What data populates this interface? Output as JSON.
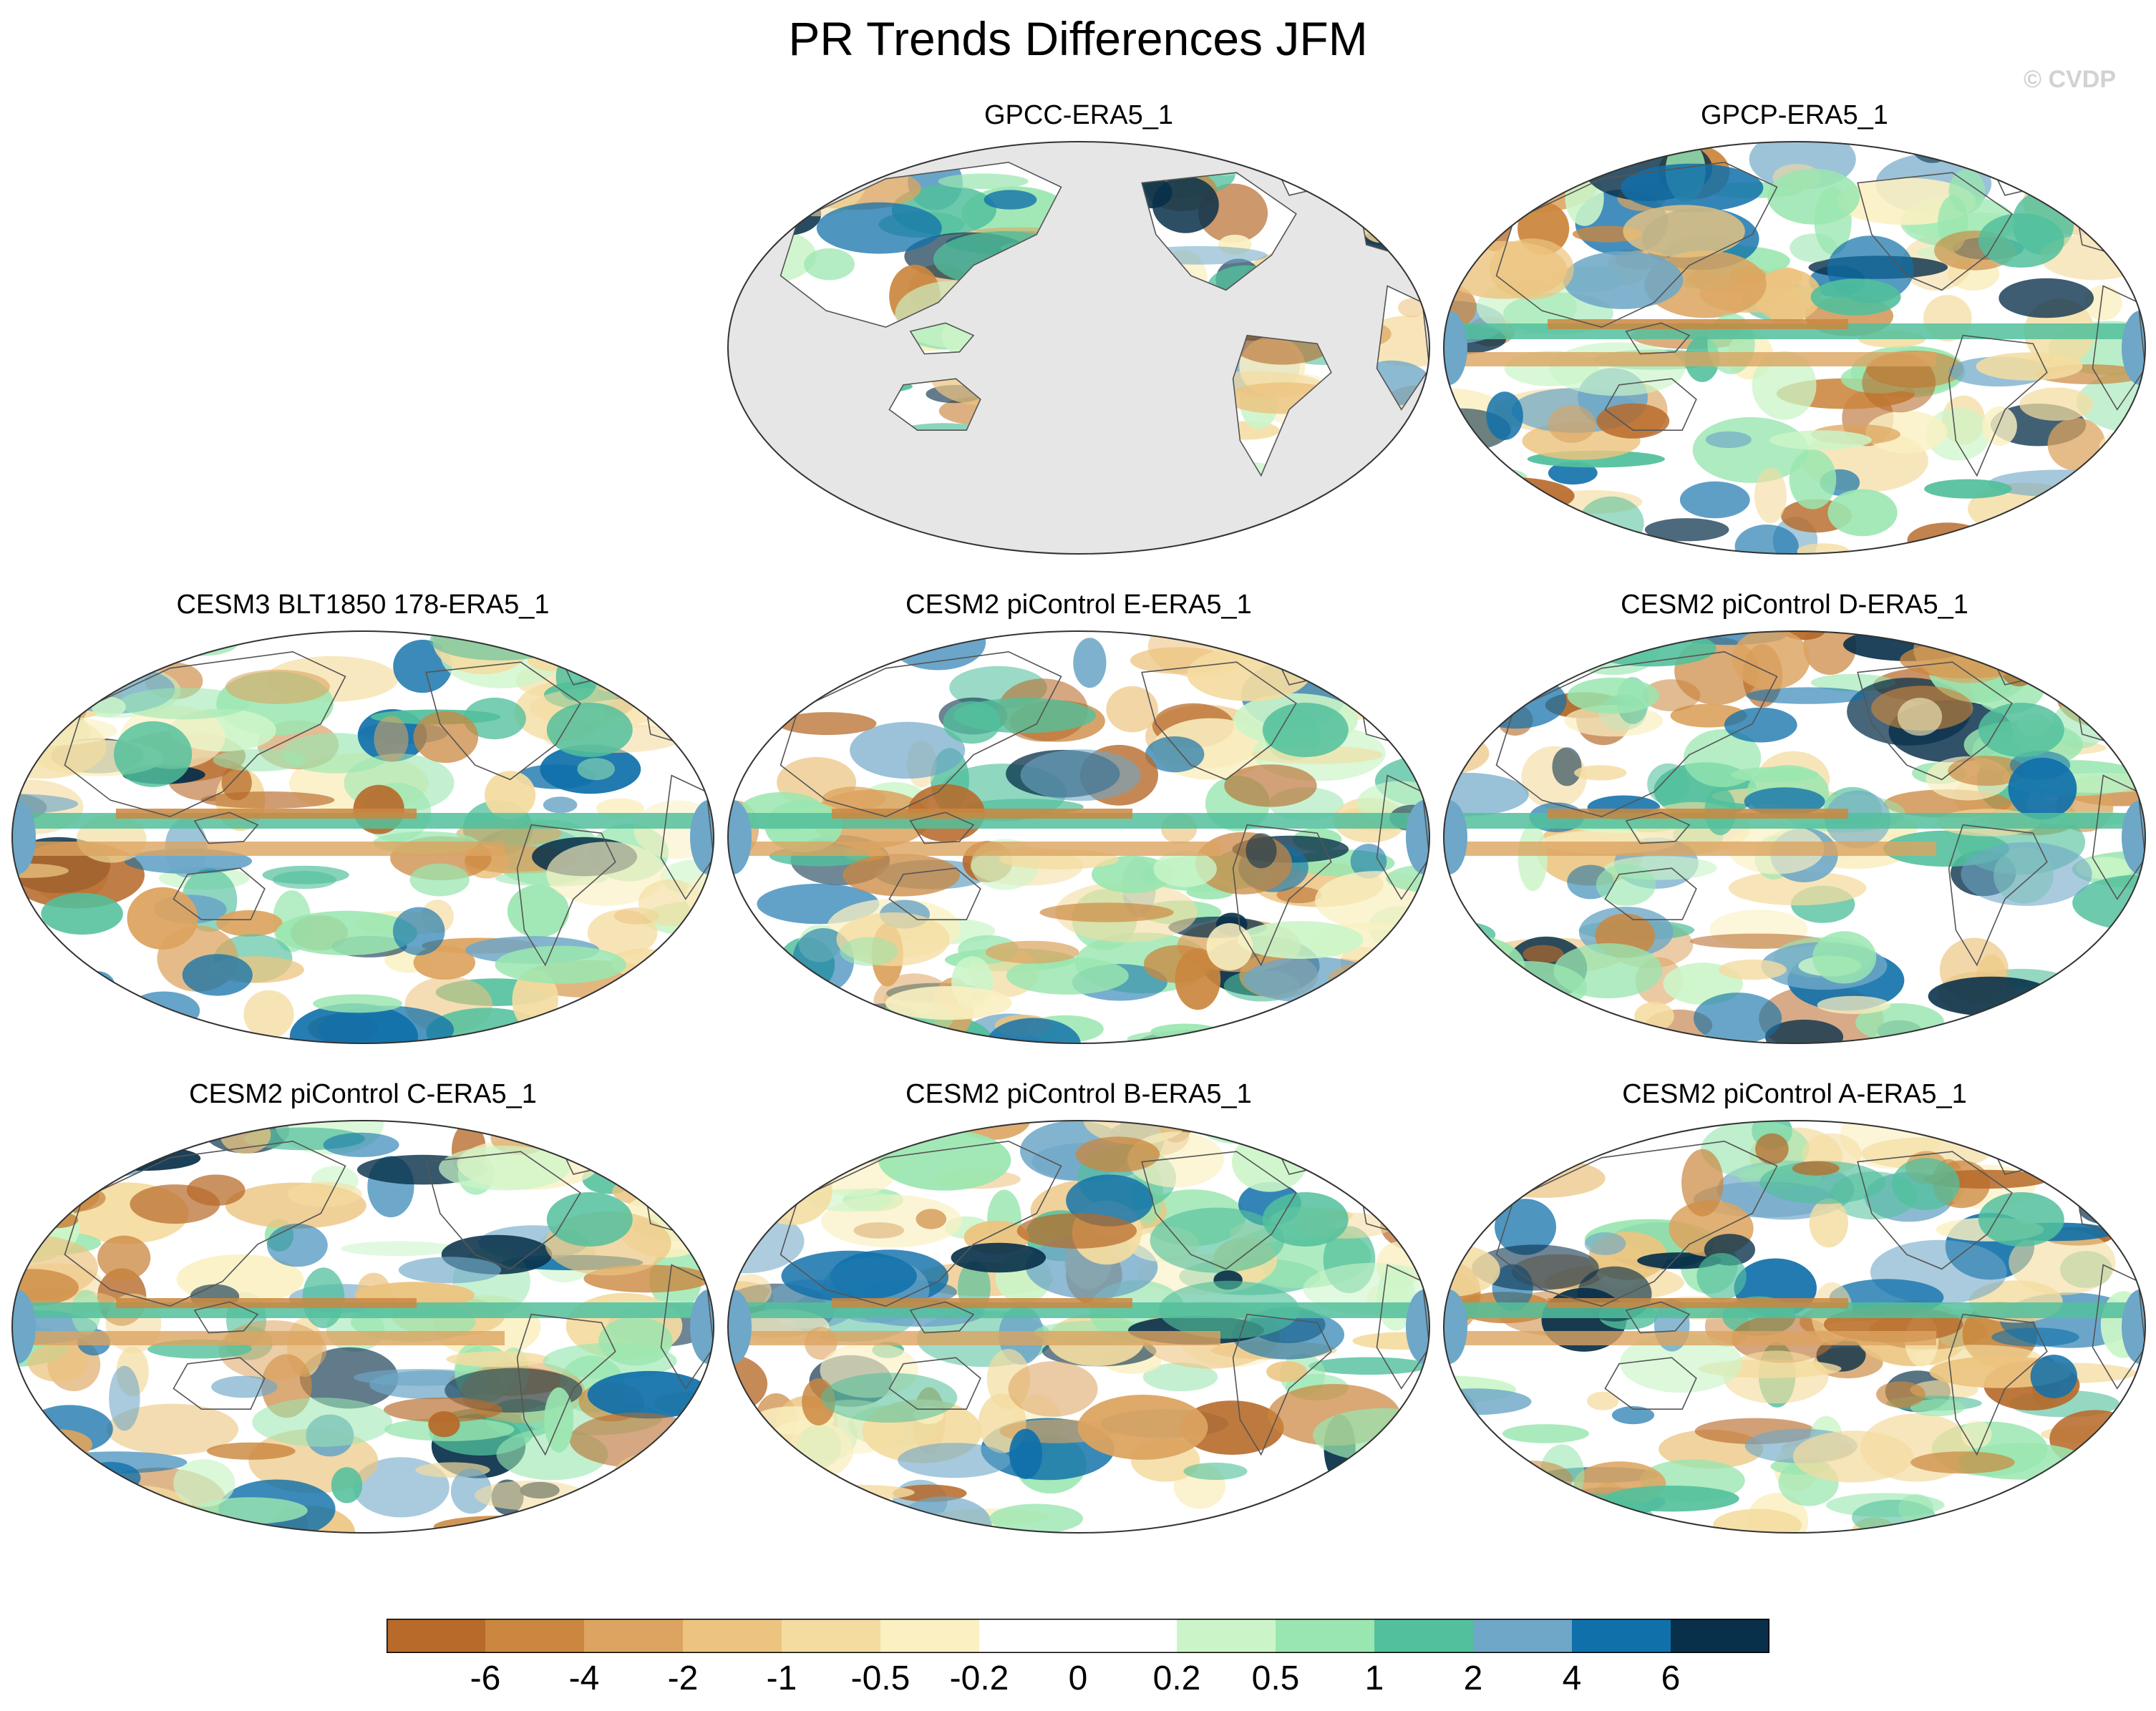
{
  "title": "PR Trends Differences JFM",
  "credit": "© CVDP",
  "colors": {
    "land_mask": "#e6e6e6",
    "coast": "#555555",
    "frame": "#333333",
    "palette": [
      "#b76a2a",
      "#cb873f",
      "#dca460",
      "#ecc47f",
      "#f4dca0",
      "#faf0c2",
      "#ffffff",
      "#ffffff",
      "#cbf5c8",
      "#9ae6b0",
      "#52c09c",
      "#6ea7c7",
      "#1070aa",
      "#08304a"
    ]
  },
  "panels": [
    {
      "id": "gpcc",
      "title": "GPCC-ERA5_1",
      "masked": true,
      "seed": 11
    },
    {
      "id": "gpcp",
      "title": "GPCP-ERA5_1",
      "masked": false,
      "seed": 23
    },
    {
      "id": "cesm3-blt1850",
      "title": "CESM3 BLT1850 178-ERA5_1",
      "masked": false,
      "seed": 37
    },
    {
      "id": "cesm2-e",
      "title": "CESM2 piControl E-ERA5_1",
      "masked": false,
      "seed": 41
    },
    {
      "id": "cesm2-d",
      "title": "CESM2 piControl D-ERA5_1",
      "masked": false,
      "seed": 53
    },
    {
      "id": "cesm2-c",
      "title": "CESM2 piControl C-ERA5_1",
      "masked": false,
      "seed": 67
    },
    {
      "id": "cesm2-b",
      "title": "CESM2 piControl B-ERA5_1",
      "masked": false,
      "seed": 71
    },
    {
      "id": "cesm2-a",
      "title": "CESM2 piControl A-ERA5_1",
      "masked": false,
      "seed": 83
    }
  ],
  "colorbar": {
    "labels": [
      "-6",
      "-4",
      "-2",
      "-1",
      "-0.5",
      "-0.2",
      "0",
      "0.2",
      "0.5",
      "1",
      "2",
      "4",
      "6"
    ]
  }
}
